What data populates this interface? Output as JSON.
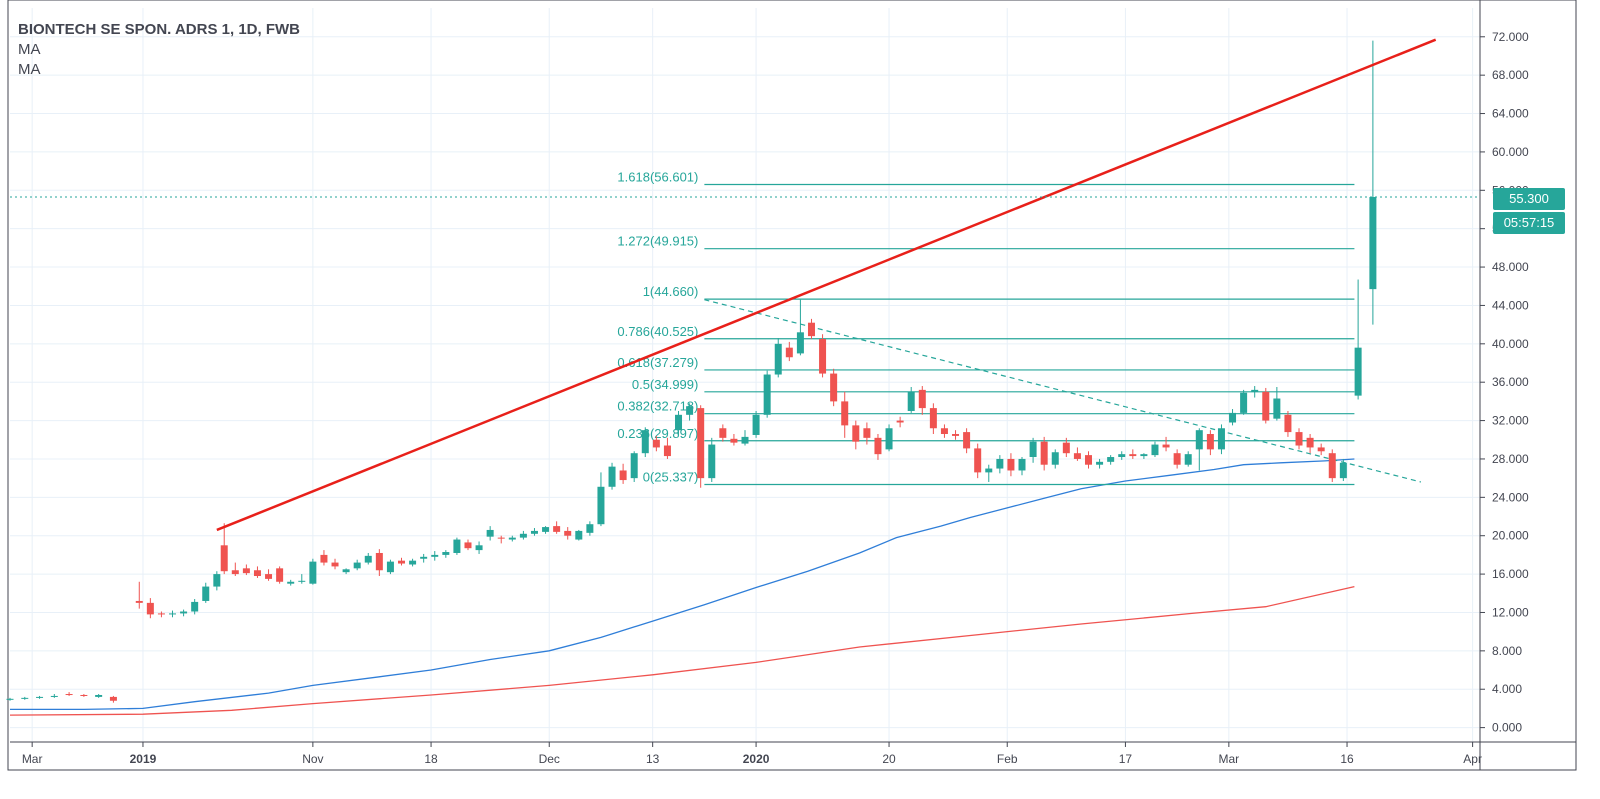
{
  "header": {
    "title": "BIONTECH SE SPON. ADRS 1, 1D, FWB",
    "indicators": [
      "MA",
      "MA"
    ]
  },
  "price_badge": {
    "price": "55.300",
    "countdown": "05:57:15"
  },
  "colors": {
    "up": "#26a69a",
    "down": "#ef5350",
    "ma_fast": "#2f7ed8",
    "ma_slow": "#ef5350",
    "trendline": "#e8201a",
    "fib": "#26a69a",
    "grid": "#e8f0f8"
  },
  "chart_data": {
    "type": "candlestick",
    "title": "BIONTECH SE SPON. ADRS 1, 1D, FWB",
    "ylim": [
      -1.5,
      75
    ],
    "grid": true,
    "y_ticks": [
      "0.000",
      "4.000",
      "8.000",
      "12.000",
      "16.000",
      "20.000",
      "24.000",
      "28.000",
      "32.000",
      "36.000",
      "40.000",
      "44.000",
      "48.000",
      "52.000",
      "56.000",
      "60.000",
      "64.000",
      "68.000",
      "72.000"
    ],
    "x_ticks": [
      "Mar",
      "2019",
      "Nov",
      "18",
      "Dec",
      "13",
      "2020",
      "20",
      "Feb",
      "17",
      "Mar",
      "16",
      "Apr"
    ],
    "x_ticks_bold": [
      "2019",
      "2020"
    ],
    "x_range": [
      0,
      199
    ],
    "x_tick_positions": [
      3,
      18,
      41,
      57,
      73,
      87,
      101,
      119,
      135,
      151,
      165,
      181,
      198
    ],
    "last_price": 55.3,
    "fib_levels": [
      {
        "label": "0(25.337)",
        "value": 25.337
      },
      {
        "label": "0.236(29.897)",
        "value": 29.897
      },
      {
        "label": "0.382(32.718)",
        "value": 32.718
      },
      {
        "label": "0.5(34.999)",
        "value": 34.999
      },
      {
        "label": "0.618(37.279)",
        "value": 37.279
      },
      {
        "label": "0.786(40.525)",
        "value": 40.525
      },
      {
        "label": "1(44.660)",
        "value": 44.66
      },
      {
        "label": "1.272(49.915)",
        "value": 49.915
      },
      {
        "label": "1.618(56.601)",
        "value": 56.601
      }
    ],
    "fib_x_range": [
      94,
      182
    ],
    "trendline_red": {
      "x": [
        28,
        193
      ],
      "y": [
        20.6,
        71.7
      ]
    },
    "trendline_dashed": {
      "x": [
        94,
        191
      ],
      "y": [
        44.6,
        25.6
      ]
    },
    "ma_fast": {
      "x": [
        0,
        10,
        18,
        25,
        35,
        41,
        50,
        57,
        65,
        73,
        80,
        87,
        94,
        101,
        108,
        115,
        120,
        126,
        130,
        135,
        140,
        145,
        151,
        157,
        163,
        167,
        172,
        178,
        182
      ],
      "y": [
        1.9,
        1.9,
        2.0,
        2.7,
        3.6,
        4.4,
        5.3,
        6.0,
        7.1,
        8.0,
        9.4,
        11.1,
        12.8,
        14.6,
        16.3,
        18.2,
        19.8,
        21.0,
        21.9,
        22.9,
        23.9,
        24.9,
        25.7,
        26.3,
        26.9,
        27.4,
        27.6,
        27.8,
        28.0
      ]
    },
    "ma_slow": {
      "x": [
        0,
        18,
        30,
        41,
        57,
        73,
        87,
        101,
        115,
        130,
        145,
        160,
        170,
        182
      ],
      "y": [
        1.3,
        1.4,
        1.8,
        2.5,
        3.4,
        4.4,
        5.5,
        6.8,
        8.4,
        9.6,
        10.8,
        11.9,
        12.6,
        14.7
      ]
    },
    "candles": [
      {
        "x": 0,
        "o": 2.9,
        "h": 3.1,
        "l": 2.8,
        "c": 3.0
      },
      {
        "x": 2,
        "o": 3.0,
        "h": 3.2,
        "l": 2.9,
        "c": 3.1
      },
      {
        "x": 4,
        "o": 3.1,
        "h": 3.3,
        "l": 3.0,
        "c": 3.2
      },
      {
        "x": 6,
        "o": 3.2,
        "h": 3.5,
        "l": 3.1,
        "c": 3.3
      },
      {
        "x": 8,
        "o": 3.5,
        "h": 3.7,
        "l": 3.3,
        "c": 3.4
      },
      {
        "x": 10,
        "o": 3.4,
        "h": 3.5,
        "l": 3.2,
        "c": 3.3
      },
      {
        "x": 12,
        "o": 3.2,
        "h": 3.5,
        "l": 3.1,
        "c": 3.4
      },
      {
        "x": 14,
        "o": 3.2,
        "h": 3.3,
        "l": 2.6,
        "c": 2.8
      },
      {
        "x": 17.5,
        "o": 13.2,
        "h": 15.2,
        "l": 12.4,
        "c": 13.0
      },
      {
        "x": 19,
        "o": 13.0,
        "h": 13.5,
        "l": 11.4,
        "c": 11.8
      },
      {
        "x": 20.5,
        "o": 11.9,
        "h": 12.1,
        "l": 11.5,
        "c": 11.8
      },
      {
        "x": 22,
        "o": 11.8,
        "h": 12.2,
        "l": 11.5,
        "c": 11.9
      },
      {
        "x": 23.5,
        "o": 11.9,
        "h": 12.3,
        "l": 11.6,
        "c": 12.1
      },
      {
        "x": 25,
        "o": 12.1,
        "h": 13.4,
        "l": 11.8,
        "c": 13.1
      },
      {
        "x": 26.5,
        "o": 13.2,
        "h": 15.1,
        "l": 13.0,
        "c": 14.7
      },
      {
        "x": 28,
        "o": 14.7,
        "h": 16.3,
        "l": 14.3,
        "c": 16.0
      },
      {
        "x": 29,
        "o": 19.0,
        "h": 21.3,
        "l": 16.0,
        "c": 16.3
      },
      {
        "x": 30.5,
        "o": 16.4,
        "h": 17.2,
        "l": 15.8,
        "c": 16.0
      },
      {
        "x": 32,
        "o": 16.6,
        "h": 17.0,
        "l": 15.9,
        "c": 16.1
      },
      {
        "x": 33.5,
        "o": 16.4,
        "h": 16.8,
        "l": 15.6,
        "c": 15.8
      },
      {
        "x": 35,
        "o": 16.0,
        "h": 16.5,
        "l": 15.3,
        "c": 15.5
      },
      {
        "x": 36.5,
        "o": 16.6,
        "h": 16.8,
        "l": 15.0,
        "c": 15.2
      },
      {
        "x": 38,
        "o": 15.0,
        "h": 15.4,
        "l": 14.8,
        "c": 15.2
      },
      {
        "x": 39.5,
        "o": 15.2,
        "h": 16.0,
        "l": 15.0,
        "c": 15.3
      },
      {
        "x": 41,
        "o": 15.0,
        "h": 17.6,
        "l": 14.9,
        "c": 17.3
      },
      {
        "x": 42.5,
        "o": 18.0,
        "h": 18.5,
        "l": 16.9,
        "c": 17.2
      },
      {
        "x": 44,
        "o": 17.2,
        "h": 17.6,
        "l": 16.5,
        "c": 16.8
      },
      {
        "x": 45.5,
        "o": 16.2,
        "h": 16.6,
        "l": 16.0,
        "c": 16.5
      },
      {
        "x": 47,
        "o": 16.6,
        "h": 17.5,
        "l": 16.4,
        "c": 17.2
      },
      {
        "x": 48.5,
        "o": 17.2,
        "h": 18.2,
        "l": 17.0,
        "c": 17.9
      },
      {
        "x": 50,
        "o": 18.2,
        "h": 18.6,
        "l": 15.8,
        "c": 16.4
      },
      {
        "x": 51.5,
        "o": 16.2,
        "h": 17.5,
        "l": 16.0,
        "c": 17.3
      },
      {
        "x": 53,
        "o": 17.4,
        "h": 17.7,
        "l": 16.9,
        "c": 17.1
      },
      {
        "x": 54.5,
        "o": 17.0,
        "h": 17.6,
        "l": 16.8,
        "c": 17.4
      },
      {
        "x": 56,
        "o": 17.6,
        "h": 18.1,
        "l": 17.2,
        "c": 17.8
      },
      {
        "x": 57.5,
        "o": 17.8,
        "h": 18.4,
        "l": 17.4,
        "c": 18.0
      },
      {
        "x": 59,
        "o": 18.0,
        "h": 18.5,
        "l": 17.7,
        "c": 18.3
      },
      {
        "x": 60.5,
        "o": 18.2,
        "h": 19.8,
        "l": 18.0,
        "c": 19.6
      },
      {
        "x": 62,
        "o": 19.3,
        "h": 19.6,
        "l": 18.5,
        "c": 18.7
      },
      {
        "x": 63.5,
        "o": 18.5,
        "h": 19.4,
        "l": 18.1,
        "c": 19.0
      },
      {
        "x": 65,
        "o": 19.9,
        "h": 21.0,
        "l": 19.5,
        "c": 20.6
      },
      {
        "x": 66.5,
        "o": 19.8,
        "h": 20.0,
        "l": 19.2,
        "c": 19.7
      },
      {
        "x": 68,
        "o": 19.6,
        "h": 20.0,
        "l": 19.4,
        "c": 19.8
      },
      {
        "x": 69.5,
        "o": 19.8,
        "h": 20.5,
        "l": 19.6,
        "c": 20.2
      },
      {
        "x": 71,
        "o": 20.2,
        "h": 20.8,
        "l": 20.0,
        "c": 20.5
      },
      {
        "x": 72.5,
        "o": 20.4,
        "h": 21.0,
        "l": 20.2,
        "c": 20.9
      },
      {
        "x": 74,
        "o": 21.0,
        "h": 21.5,
        "l": 20.2,
        "c": 20.4
      },
      {
        "x": 75.5,
        "o": 20.5,
        "h": 20.9,
        "l": 19.6,
        "c": 20.0
      },
      {
        "x": 77,
        "o": 19.6,
        "h": 20.6,
        "l": 19.5,
        "c": 20.5
      },
      {
        "x": 78.5,
        "o": 20.3,
        "h": 21.5,
        "l": 20.0,
        "c": 21.2
      },
      {
        "x": 80,
        "o": 21.2,
        "h": 26.6,
        "l": 21.0,
        "c": 25.1
      },
      {
        "x": 81.5,
        "o": 25.1,
        "h": 27.6,
        "l": 24.8,
        "c": 27.2
      },
      {
        "x": 83,
        "o": 26.8,
        "h": 27.5,
        "l": 25.4,
        "c": 25.8
      },
      {
        "x": 84.5,
        "o": 26.0,
        "h": 28.8,
        "l": 25.6,
        "c": 28.6
      },
      {
        "x": 86,
        "o": 28.6,
        "h": 31.3,
        "l": 28.2,
        "c": 31.0
      },
      {
        "x": 87.5,
        "o": 30.0,
        "h": 30.4,
        "l": 28.8,
        "c": 29.2
      },
      {
        "x": 89,
        "o": 29.4,
        "h": 30.2,
        "l": 28.0,
        "c": 28.3
      },
      {
        "x": 90.5,
        "o": 31.0,
        "h": 33.0,
        "l": 30.5,
        "c": 32.6
      },
      {
        "x": 92,
        "o": 32.6,
        "h": 33.8,
        "l": 32.0,
        "c": 33.5
      },
      {
        "x": 93.5,
        "o": 33.3,
        "h": 33.6,
        "l": 25.0,
        "c": 26.0
      },
      {
        "x": 95,
        "o": 26.0,
        "h": 30.2,
        "l": 25.6,
        "c": 29.5
      },
      {
        "x": 96.5,
        "o": 31.2,
        "h": 31.6,
        "l": 29.8,
        "c": 30.2
      },
      {
        "x": 98,
        "o": 30.1,
        "h": 30.6,
        "l": 29.4,
        "c": 29.7
      },
      {
        "x": 99.5,
        "o": 29.6,
        "h": 31.0,
        "l": 29.4,
        "c": 30.3
      },
      {
        "x": 101,
        "o": 30.5,
        "h": 33.0,
        "l": 30.2,
        "c": 32.6
      },
      {
        "x": 102.5,
        "o": 32.6,
        "h": 37.2,
        "l": 32.3,
        "c": 36.8
      },
      {
        "x": 104,
        "o": 36.8,
        "h": 40.6,
        "l": 36.5,
        "c": 40.0
      },
      {
        "x": 105.5,
        "o": 39.6,
        "h": 40.2,
        "l": 38.2,
        "c": 38.6
      },
      {
        "x": 107,
        "o": 39.0,
        "h": 44.6,
        "l": 38.8,
        "c": 41.2
      },
      {
        "x": 108.5,
        "o": 42.2,
        "h": 42.6,
        "l": 40.5,
        "c": 40.8
      },
      {
        "x": 110,
        "o": 40.5,
        "h": 41.0,
        "l": 36.5,
        "c": 36.9
      },
      {
        "x": 111.5,
        "o": 36.9,
        "h": 37.4,
        "l": 33.5,
        "c": 34.0
      },
      {
        "x": 113,
        "o": 34.0,
        "h": 35.0,
        "l": 30.2,
        "c": 31.5
      },
      {
        "x": 114.5,
        "o": 31.5,
        "h": 32.0,
        "l": 29.0,
        "c": 29.8
      },
      {
        "x": 116,
        "o": 31.2,
        "h": 31.8,
        "l": 29.5,
        "c": 30.2
      },
      {
        "x": 117.5,
        "o": 30.2,
        "h": 30.6,
        "l": 27.9,
        "c": 28.5
      },
      {
        "x": 119,
        "o": 29.0,
        "h": 31.6,
        "l": 28.8,
        "c": 31.2
      },
      {
        "x": 120.5,
        "o": 32.0,
        "h": 32.4,
        "l": 31.3,
        "c": 31.8
      },
      {
        "x": 122,
        "o": 33.0,
        "h": 35.5,
        "l": 32.8,
        "c": 35.0
      },
      {
        "x": 123.5,
        "o": 35.2,
        "h": 35.6,
        "l": 32.6,
        "c": 33.3
      },
      {
        "x": 125,
        "o": 33.3,
        "h": 33.8,
        "l": 30.6,
        "c": 31.2
      },
      {
        "x": 126.5,
        "o": 31.2,
        "h": 31.6,
        "l": 30.2,
        "c": 30.6
      },
      {
        "x": 128,
        "o": 30.6,
        "h": 31.0,
        "l": 30.0,
        "c": 30.4
      },
      {
        "x": 129.5,
        "o": 30.8,
        "h": 31.2,
        "l": 28.6,
        "c": 29.1
      },
      {
        "x": 131,
        "o": 29.1,
        "h": 29.6,
        "l": 26.0,
        "c": 26.6
      },
      {
        "x": 132.5,
        "o": 26.6,
        "h": 27.4,
        "l": 25.6,
        "c": 27.0
      },
      {
        "x": 134,
        "o": 27.0,
        "h": 28.4,
        "l": 26.5,
        "c": 28.0
      },
      {
        "x": 135.5,
        "o": 28.0,
        "h": 28.6,
        "l": 26.2,
        "c": 26.8
      },
      {
        "x": 137,
        "o": 26.8,
        "h": 28.2,
        "l": 26.3,
        "c": 28.0
      },
      {
        "x": 138.5,
        "o": 28.2,
        "h": 30.2,
        "l": 27.6,
        "c": 29.8
      },
      {
        "x": 140,
        "o": 29.8,
        "h": 30.3,
        "l": 26.8,
        "c": 27.4
      },
      {
        "x": 141.5,
        "o": 27.4,
        "h": 29.0,
        "l": 27.0,
        "c": 28.7
      },
      {
        "x": 143,
        "o": 29.7,
        "h": 30.2,
        "l": 28.2,
        "c": 28.6
      },
      {
        "x": 144.5,
        "o": 28.6,
        "h": 29.2,
        "l": 27.8,
        "c": 28.0
      },
      {
        "x": 146,
        "o": 28.4,
        "h": 28.8,
        "l": 27.0,
        "c": 27.4
      },
      {
        "x": 147.5,
        "o": 27.4,
        "h": 28.0,
        "l": 27.0,
        "c": 27.7
      },
      {
        "x": 149,
        "o": 27.7,
        "h": 28.4,
        "l": 27.4,
        "c": 28.2
      },
      {
        "x": 150.5,
        "o": 28.2,
        "h": 28.8,
        "l": 27.9,
        "c": 28.5
      },
      {
        "x": 152,
        "o": 28.5,
        "h": 29.0,
        "l": 28.0,
        "c": 28.3
      },
      {
        "x": 153.5,
        "o": 28.3,
        "h": 28.6,
        "l": 28.0,
        "c": 28.5
      },
      {
        "x": 155,
        "o": 28.4,
        "h": 29.8,
        "l": 28.2,
        "c": 29.5
      },
      {
        "x": 156.5,
        "o": 29.5,
        "h": 30.3,
        "l": 28.8,
        "c": 29.2
      },
      {
        "x": 158,
        "o": 28.6,
        "h": 29.0,
        "l": 27.0,
        "c": 27.4
      },
      {
        "x": 159.5,
        "o": 27.4,
        "h": 28.8,
        "l": 27.2,
        "c": 28.5
      },
      {
        "x": 161,
        "o": 29.0,
        "h": 31.2,
        "l": 26.8,
        "c": 31.0
      },
      {
        "x": 162.5,
        "o": 30.6,
        "h": 31.0,
        "l": 28.4,
        "c": 29.0
      },
      {
        "x": 164,
        "o": 29.0,
        "h": 31.6,
        "l": 28.5,
        "c": 31.2
      },
      {
        "x": 165.5,
        "o": 31.8,
        "h": 33.2,
        "l": 31.5,
        "c": 32.8
      },
      {
        "x": 167,
        "o": 32.8,
        "h": 35.2,
        "l": 32.6,
        "c": 34.9
      },
      {
        "x": 168.5,
        "o": 35.0,
        "h": 35.6,
        "l": 34.4,
        "c": 35.2
      },
      {
        "x": 170,
        "o": 35.0,
        "h": 35.4,
        "l": 31.7,
        "c": 32.0
      },
      {
        "x": 171.5,
        "o": 32.2,
        "h": 35.5,
        "l": 32.0,
        "c": 34.3
      },
      {
        "x": 173,
        "o": 32.6,
        "h": 33.0,
        "l": 30.3,
        "c": 30.8
      },
      {
        "x": 174.5,
        "o": 30.8,
        "h": 31.2,
        "l": 29.0,
        "c": 29.4
      },
      {
        "x": 176,
        "o": 30.2,
        "h": 30.6,
        "l": 28.6,
        "c": 29.2
      },
      {
        "x": 177.5,
        "o": 29.2,
        "h": 29.6,
        "l": 28.4,
        "c": 28.8
      },
      {
        "x": 179,
        "o": 28.6,
        "h": 29.0,
        "l": 25.6,
        "c": 26.0
      },
      {
        "x": 180.5,
        "o": 26.0,
        "h": 28.0,
        "l": 25.7,
        "c": 27.6
      },
      {
        "x": 182.5,
        "o": 34.6,
        "h": 46.7,
        "l": 34.2,
        "c": 39.6
      },
      {
        "x": 184.5,
        "o": 45.7,
        "h": 71.6,
        "l": 42.0,
        "c": 55.3
      }
    ]
  }
}
